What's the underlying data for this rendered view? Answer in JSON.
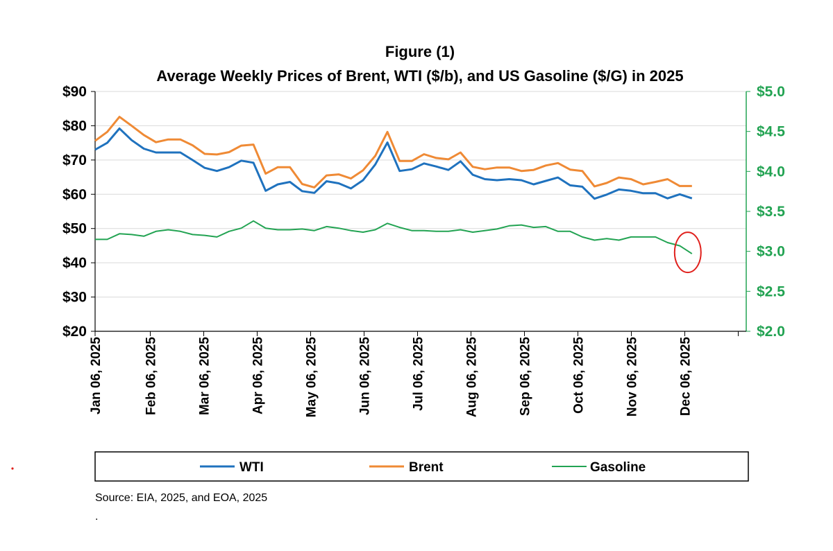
{
  "chart_data": {
    "type": "line",
    "title": "Figure (1)",
    "subtitle": "Average Weekly Prices of Brent, WTI ($/b), and US Gasoline ($/G) in 2025",
    "x": [
      "Jan 06, 2025",
      "Jan 13, 2025",
      "Jan 20, 2025",
      "Jan 27, 2025",
      "Feb 03, 2025",
      "Feb 10, 2025",
      "Feb 17, 2025",
      "Feb 24, 2025",
      "Mar 03, 2025",
      "Mar 10, 2025",
      "Mar 17, 2025",
      "Mar 24, 2025",
      "Mar 31, 2025",
      "Apr 07, 2025",
      "Apr 14, 2025",
      "Apr 21, 2025",
      "Apr 28, 2025",
      "May 05, 2025",
      "May 12, 2025",
      "May 19, 2025",
      "May 26, 2025",
      "Jun 02, 2025",
      "Jun 09, 2025",
      "Jun 16, 2025",
      "Jun 23, 2025",
      "Jun 30, 2025",
      "Jul 07, 2025",
      "Jul 14, 2025",
      "Jul 21, 2025",
      "Jul 28, 2025",
      "Aug 04, 2025",
      "Aug 11, 2025",
      "Aug 18, 2025",
      "Aug 25, 2025",
      "Sep 01, 2025",
      "Sep 08, 2025",
      "Sep 15, 2025",
      "Sep 22, 2025",
      "Sep 29, 2025",
      "Oct 06, 2025",
      "Oct 13, 2025",
      "Oct 20, 2025",
      "Oct 27, 2025",
      "Nov 03, 2025",
      "Nov 10, 2025",
      "Nov 17, 2025",
      "Nov 24, 2025",
      "Dec 01, 2025",
      "Dec 08, 2025",
      "Dec 15, 2025"
    ],
    "x_tick_labels": [
      "Jan 06, 2025",
      "Feb 06, 2025",
      "Mar 06, 2025",
      "Apr 06, 2025",
      "May 06, 2025",
      "Jun 06, 2025",
      "Jul 06, 2025",
      "Aug 06, 2025",
      "Sep 06, 2025",
      "Oct 06, 2025",
      "Nov 06, 2025",
      "Dec 06, 2025"
    ],
    "series": [
      {
        "name": "WTI",
        "axis": "left",
        "color": "#1f72be",
        "values": [
          73.0,
          75.0,
          79.2,
          75.8,
          73.3,
          72.2,
          72.2,
          72.2,
          70.0,
          67.7,
          66.8,
          67.9,
          69.8,
          69.2,
          61.0,
          62.9,
          63.6,
          60.9,
          60.4,
          63.8,
          63.2,
          61.7,
          64.1,
          68.7,
          75.1,
          66.8,
          67.3,
          69.0,
          68.1,
          67.1,
          69.6,
          65.7,
          64.4,
          64.1,
          64.4,
          64.1,
          62.9,
          63.9,
          64.9,
          62.6,
          62.2,
          58.7,
          59.9,
          61.4,
          61.0,
          60.3,
          60.3,
          58.8,
          60.0,
          58.8
        ]
      },
      {
        "name": "Brent",
        "axis": "left",
        "color": "#ef8a35",
        "values": [
          75.6,
          78.2,
          82.6,
          80.0,
          77.3,
          75.2,
          76.0,
          76.0,
          74.3,
          71.8,
          71.6,
          72.3,
          74.2,
          74.5,
          66.0,
          67.9,
          67.9,
          63.0,
          62.0,
          65.5,
          65.8,
          64.6,
          67.0,
          71.2,
          78.2,
          69.7,
          69.7,
          71.7,
          70.6,
          70.2,
          72.2,
          68.0,
          67.3,
          67.8,
          67.8,
          66.8,
          67.1,
          68.4,
          69.1,
          67.2,
          66.8,
          62.3,
          63.3,
          64.9,
          64.4,
          62.9,
          63.6,
          64.4,
          62.4,
          62.4
        ]
      },
      {
        "name": "Gasoline",
        "axis": "right",
        "color": "#22a352",
        "values": [
          3.15,
          3.15,
          3.22,
          3.21,
          3.19,
          3.25,
          3.27,
          3.25,
          3.21,
          3.2,
          3.18,
          3.25,
          3.29,
          3.38,
          3.29,
          3.27,
          3.27,
          3.28,
          3.26,
          3.31,
          3.29,
          3.26,
          3.24,
          3.27,
          3.35,
          3.3,
          3.26,
          3.26,
          3.25,
          3.25,
          3.27,
          3.24,
          3.26,
          3.28,
          3.32,
          3.33,
          3.3,
          3.31,
          3.25,
          3.25,
          3.18,
          3.14,
          3.16,
          3.14,
          3.18,
          3.18,
          3.18,
          3.11,
          3.07,
          2.97
        ]
      }
    ],
    "y_left": {
      "ylim": [
        20,
        90
      ],
      "ticks": [
        20,
        30,
        40,
        50,
        60,
        70,
        80,
        90
      ],
      "tick_labels": [
        "$20",
        "$30",
        "$40",
        "$50",
        "$60",
        "$70",
        "$80",
        "$90"
      ]
    },
    "y_right": {
      "ylim": [
        2.0,
        5.0
      ],
      "ticks": [
        2.0,
        2.5,
        3.0,
        3.5,
        4.0,
        4.5,
        5.0
      ],
      "tick_labels": [
        "$2.0",
        "$2.5",
        "$3.0",
        "$3.5",
        "$4.0",
        "$4.5",
        "$5.0"
      ],
      "color": "#22a352"
    },
    "grid": true,
    "legend": {
      "placement": "bottom",
      "entries": [
        "WTI",
        "Brent",
        "Gasoline"
      ]
    },
    "annotation": {
      "type": "ellipse",
      "color": "#e0201c",
      "series": "Gasoline",
      "at_index": 49
    },
    "source": "Source: EIA, 2025, and EOA, 2025",
    "footnote": "."
  }
}
